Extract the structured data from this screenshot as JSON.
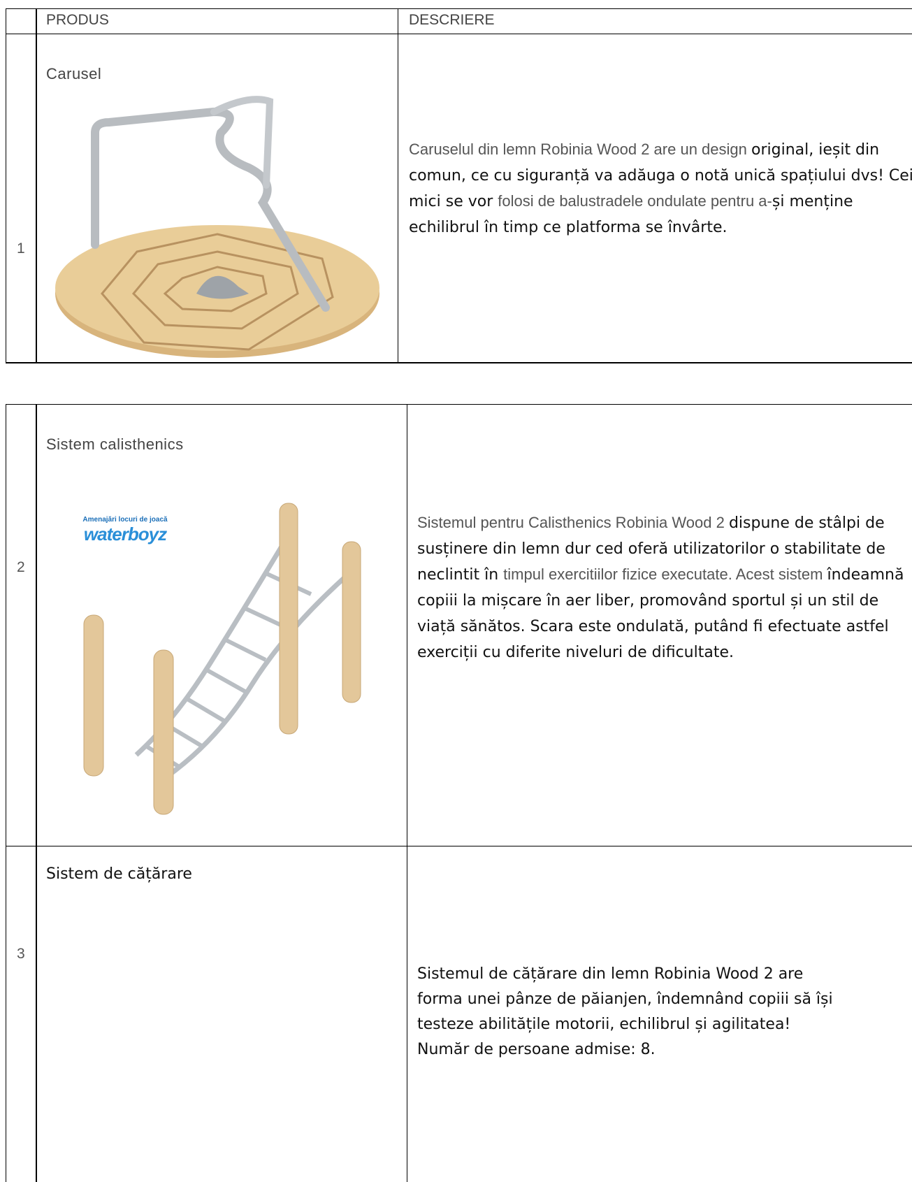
{
  "table1": {
    "header": [
      "PRODUS",
      "DESCRIERE"
    ],
    "rows": [
      {
        "number": "1",
        "product": "Carusel",
        "description": [
          "Caruselul din lemn Robinia Wood 2 are un design ",
          "original, ieșit din comun, ce cu siguranță va adăuga o notă unică spațiului dvs! Cei mici se vor ",
          "folosi de balustradele ondulate pentru a-",
          "și menține echilibrul în timp ce platforma se învârte."
        ]
      }
    ]
  },
  "table2": {
    "rows": [
      {
        "number": "2",
        "product": "Sistem calisthenics",
        "logo": {
          "tagline": "Amenajări locuri de joacă",
          "name": "waterboyz"
        },
        "description": [
          "Sistemul pentru Calisthenics Robinia Wood 2 ",
          "dispune de stâlpi de susținere din lemn dur ced oferă utilizatorilor o stabilitate de neclintit în ",
          "timpul exercitiilor fizice executate. Acest sistem ",
          "îndeamnă copiii la mișcare în aer liber, promovând sportul și un stil de viață sănătos. Scara este ondulată, putând fi efectuate astfel exerciții cu diferite niveluri de dificultate."
        ]
      },
      {
        "number": "3",
        "product": "Sistem de cățărare",
        "description": [
          "Sistemul de cățărare din lemn Robinia Wood 2 are forma unei pânze de păianjen, îndemnând copiii să își testeze abilitățile motorii, echilibrul și agilitatea! Număr de persoane admise: 8."
        ]
      }
    ]
  }
}
